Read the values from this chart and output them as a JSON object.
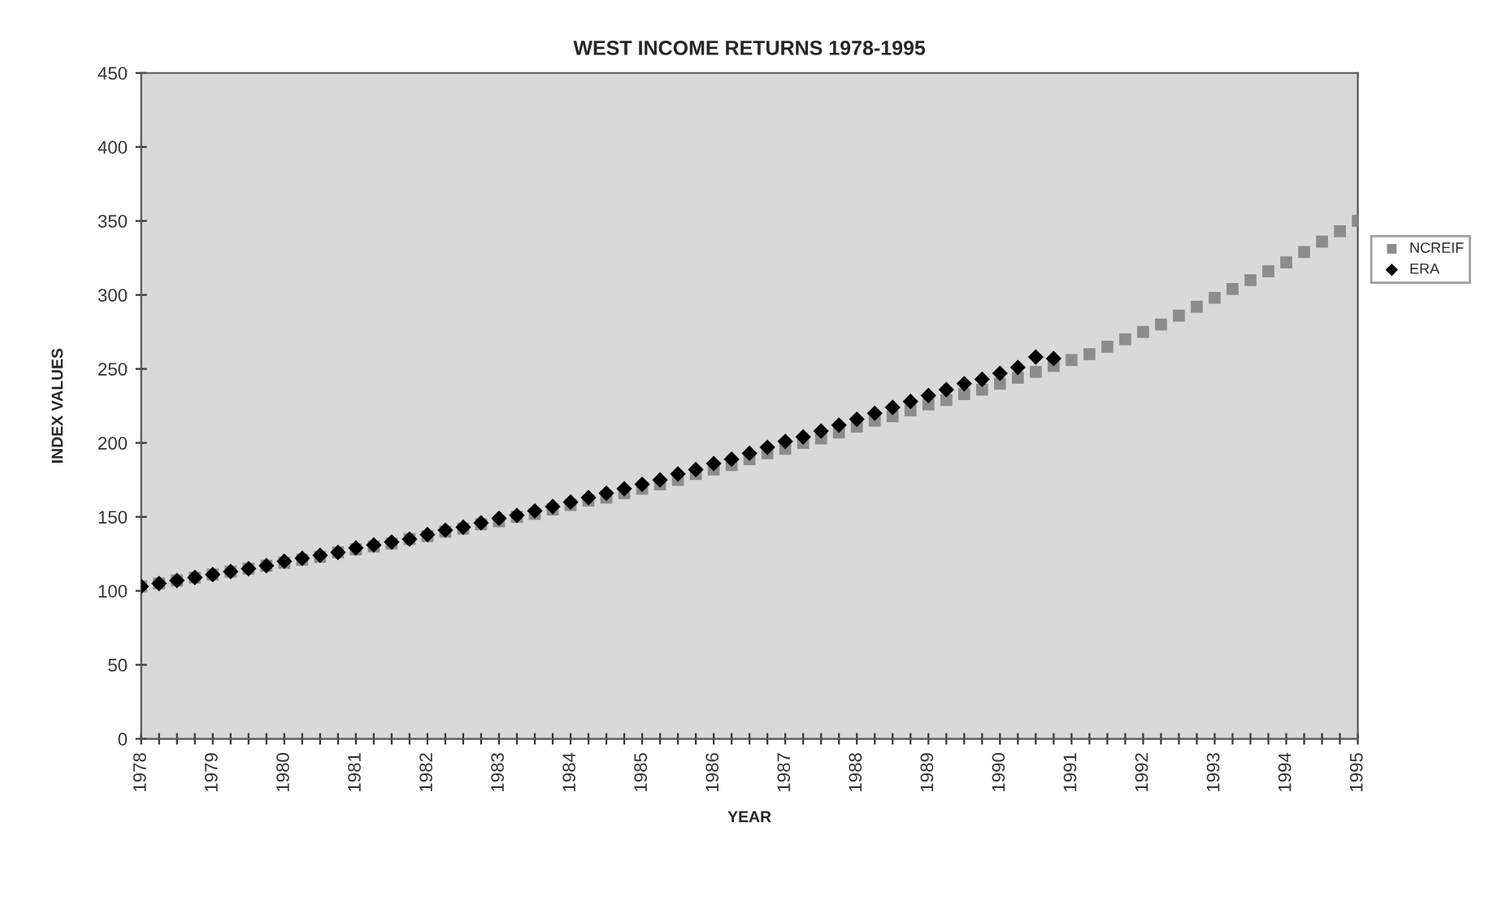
{
  "chart_data": {
    "type": "scatter",
    "title": "WEST INCOME RETURNS 1978-1995",
    "xlabel": "YEAR",
    "ylabel": "INDEX VALUES",
    "x": [
      1978,
      1978.25,
      1978.5,
      1978.75,
      1979,
      1979.25,
      1979.5,
      1979.75,
      1980,
      1980.25,
      1980.5,
      1980.75,
      1981,
      1981.25,
      1981.5,
      1981.75,
      1982,
      1982.25,
      1982.5,
      1982.75,
      1983,
      1983.25,
      1983.5,
      1983.75,
      1984,
      1984.25,
      1984.5,
      1984.75,
      1985,
      1985.25,
      1985.5,
      1985.75,
      1986,
      1986.25,
      1986.5,
      1986.75,
      1987,
      1987.25,
      1987.5,
      1987.75,
      1988,
      1988.25,
      1988.5,
      1988.75,
      1989,
      1989.25,
      1989.5,
      1989.75,
      1990,
      1990.25,
      1990.5,
      1990.75,
      1991,
      1991.25,
      1991.5,
      1991.75,
      1992,
      1992.25,
      1992.5,
      1992.75,
      1993,
      1993.25,
      1993.5,
      1993.75,
      1994,
      1994.25,
      1994.5,
      1994.75,
      1995
    ],
    "series": [
      {
        "name": "NCREIF",
        "color": "#8c8c8c",
        "marker": "square",
        "values": [
          103,
          105,
          107,
          109,
          111,
          113,
          115,
          117,
          119,
          121,
          123,
          126,
          128,
          130,
          132,
          135,
          137,
          140,
          142,
          145,
          147,
          150,
          152,
          155,
          158,
          161,
          163,
          166,
          169,
          172,
          175,
          179,
          182,
          185,
          189,
          193,
          196,
          200,
          203,
          207,
          211,
          215,
          218,
          222,
          226,
          229,
          233,
          236,
          240,
          244,
          248,
          252,
          256,
          260,
          265,
          270,
          275,
          280,
          286,
          292,
          298,
          304,
          310,
          316,
          322,
          329,
          336,
          343,
          350
        ]
      },
      {
        "name": "ERA",
        "color": "#000000",
        "marker": "diamond",
        "values": [
          103,
          105,
          107,
          109,
          111,
          113,
          115,
          117,
          120,
          122,
          124,
          126,
          129,
          131,
          133,
          135,
          138,
          141,
          143,
          146,
          149,
          151,
          154,
          157,
          160,
          163,
          166,
          169,
          172,
          175,
          179,
          182,
          186,
          189,
          193,
          197,
          201,
          204,
          208,
          212,
          216,
          220,
          224,
          228,
          232,
          236,
          240,
          243,
          247,
          251,
          258,
          257,
          null,
          null,
          null,
          null,
          null,
          null,
          null,
          null,
          null,
          null,
          null,
          null,
          null,
          null,
          null,
          null,
          null
        ]
      }
    ],
    "xlim": [
      1978,
      1995
    ],
    "xticks": [
      1978,
      {
        "value": 1978.25,
        "label": null
      },
      {
        "value": 1978.5,
        "label": null
      },
      {
        "value": 1978.75,
        "label": null
      },
      1979,
      {
        "value": 1979.25,
        "label": null
      },
      {
        "value": 1979.5,
        "label": null
      },
      {
        "value": 1979.75,
        "label": null
      },
      1980,
      {
        "value": 1980.25,
        "label": null
      },
      {
        "value": 1980.5,
        "label": null
      },
      {
        "value": 1980.75,
        "label": null
      },
      1981,
      {
        "value": 1981.25,
        "label": null
      },
      {
        "value": 1981.5,
        "label": null
      },
      {
        "value": 1981.75,
        "label": null
      },
      1982,
      {
        "value": 1982.25,
        "label": null
      },
      {
        "value": 1982.5,
        "label": null
      },
      {
        "value": 1982.75,
        "label": null
      },
      1983,
      {
        "value": 1983.25,
        "label": null
      },
      {
        "value": 1983.5,
        "label": null
      },
      {
        "value": 1983.75,
        "label": null
      },
      1984,
      {
        "value": 1984.25,
        "label": null
      },
      {
        "value": 1984.5,
        "label": null
      },
      {
        "value": 1984.75,
        "label": null
      },
      1985,
      {
        "value": 1985.25,
        "label": null
      },
      {
        "value": 1985.5,
        "label": null
      },
      {
        "value": 1985.75,
        "label": null
      },
      1986,
      {
        "value": 1986.25,
        "label": null
      },
      {
        "value": 1986.5,
        "label": null
      },
      {
        "value": 1986.75,
        "label": null
      },
      1987,
      {
        "value": 1987.25,
        "label": null
      },
      {
        "value": 1987.5,
        "label": null
      },
      {
        "value": 1987.75,
        "label": null
      },
      1988,
      {
        "value": 1988.25,
        "label": null
      },
      {
        "value": 1988.5,
        "label": null
      },
      {
        "value": 1988.75,
        "label": null
      },
      1989,
      {
        "value": 1989.25,
        "label": null
      },
      {
        "value": 1989.5,
        "label": null
      },
      {
        "value": 1989.75,
        "label": null
      },
      1990,
      {
        "value": 1990.25,
        "label": null
      },
      {
        "value": 1990.5,
        "label": null
      },
      {
        "value": 1990.75,
        "label": null
      },
      1991,
      {
        "value": 1991.25,
        "label": null
      },
      {
        "value": 1991.5,
        "label": null
      },
      {
        "value": 1991.75,
        "label": null
      },
      1992,
      {
        "value": 1992.25,
        "label": null
      },
      {
        "value": 1992.5,
        "label": null
      },
      {
        "value": 1992.75,
        "label": null
      },
      1993,
      {
        "value": 1993.25,
        "label": null
      },
      {
        "value": 1993.5,
        "label": null
      },
      {
        "value": 1993.75,
        "label": null
      },
      1994,
      {
        "value": 1994.25,
        "label": null
      },
      {
        "value": 1994.5,
        "label": null
      },
      {
        "value": 1994.75,
        "label": null
      },
      1995
    ],
    "ylim": [
      0,
      450
    ],
    "yticks": [
      0,
      50,
      100,
      150,
      200,
      250,
      300,
      350,
      400,
      450
    ],
    "grid": false,
    "legend": "right"
  }
}
